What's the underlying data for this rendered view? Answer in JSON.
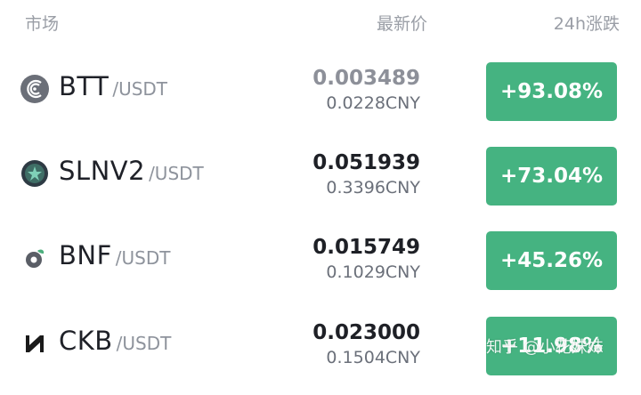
{
  "header": {
    "market_label": "市场",
    "price_label": "最新价",
    "change_label": "24h涨跌"
  },
  "rows": [
    {
      "base": "BTT",
      "quote": "/USDT",
      "price": "0.003489",
      "cny": "0.0228CNY",
      "change": "+93.08%",
      "icon": "btt-logo-icon"
    },
    {
      "base": "SLNV2",
      "quote": "/USDT",
      "price": "0.051939",
      "cny": "0.3396CNY",
      "change": "+73.04%",
      "icon": "slnv2-logo-icon"
    },
    {
      "base": "BNF",
      "quote": "/USDT",
      "price": "0.015749",
      "cny": "0.1029CNY",
      "change": "+45.26%",
      "icon": "bnf-logo-icon"
    },
    {
      "base": "CKB",
      "quote": "/USDT",
      "price": "0.023000",
      "cny": "0.1504CNY",
      "change": "+11.98%",
      "icon": "ckb-logo-icon"
    }
  ],
  "colors": {
    "up": "#45b381",
    "text_primary": "#1f2128",
    "text_secondary": "#8e939c"
  },
  "watermark": "知乎 @小花妹妹"
}
